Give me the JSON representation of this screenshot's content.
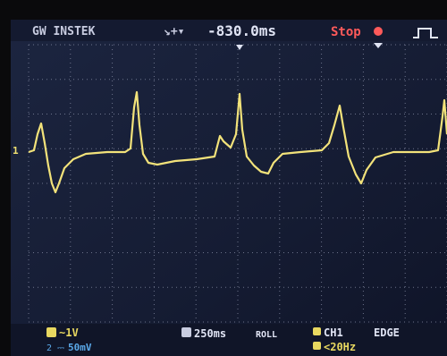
{
  "header": {
    "brand": "GW INSTEK",
    "delay": "-830.0ms",
    "status": "Stop"
  },
  "channel_marker": "1",
  "footer": {
    "ch1_scale": "~1V",
    "ch2_scale": "50mV",
    "timebase": "250ms",
    "mode": "ROLL",
    "trigger_source": "CH1",
    "trigger_type": "EDGE",
    "trigger_filter": "<20Hz"
  }
}
